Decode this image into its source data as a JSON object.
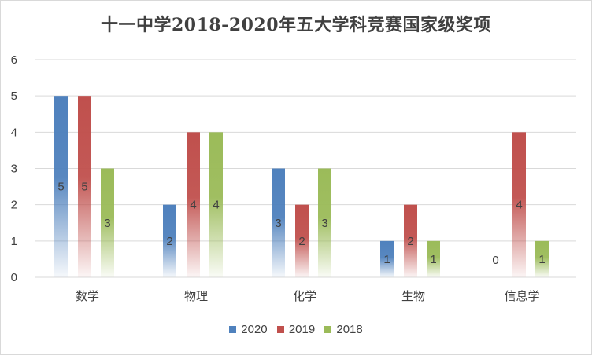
{
  "chart_data": {
    "type": "bar",
    "title": "十一中学2018-2020年五大学科竞赛国家级奖项",
    "categories": [
      "数学",
      "物理",
      "化学",
      "生物",
      "信息学"
    ],
    "series": [
      {
        "name": "2020",
        "values": [
          5,
          2,
          3,
          1,
          0
        ],
        "color": "#4f81bd"
      },
      {
        "name": "2019",
        "values": [
          5,
          4,
          2,
          2,
          4
        ],
        "color": "#c0504d"
      },
      {
        "name": "2018",
        "values": [
          3,
          4,
          3,
          1,
          1
        ],
        "color": "#9bbb59"
      }
    ],
    "yticks": [
      "0",
      "1",
      "2",
      "3",
      "4",
      "5",
      "6"
    ],
    "ylim": [
      0,
      6
    ],
    "grid": true,
    "legend_position": "bottom",
    "data_labels": true
  }
}
